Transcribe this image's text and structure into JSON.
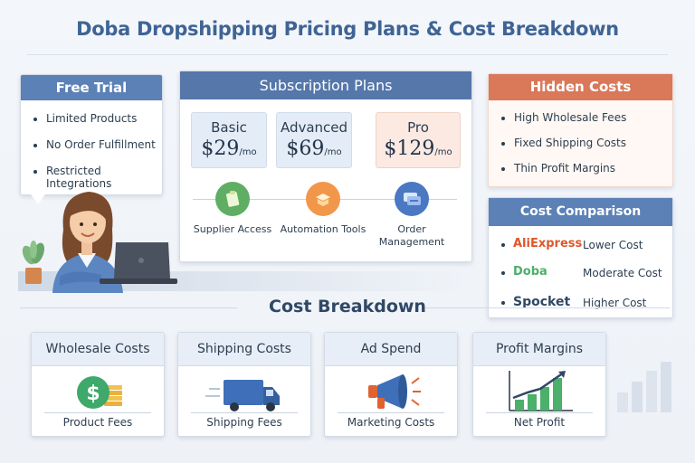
{
  "title": "Doba Dropshipping Pricing Plans & Cost Breakdown",
  "free_trial": {
    "heading": "Free Trial",
    "items": [
      "Limited Products",
      "No Order Fulfillment",
      "Restricted Integrations"
    ]
  },
  "subscription": {
    "heading": "Subscription Plans",
    "plans": [
      {
        "name": "Basic",
        "price": "$29",
        "period": "/mo"
      },
      {
        "name": "Advanced",
        "price": "$69",
        "period": "/mo"
      },
      {
        "name": "Pro",
        "price": "$129",
        "period": "/mo"
      }
    ],
    "features": [
      {
        "label": "Supplier Access",
        "icon": "supplier-access-icon"
      },
      {
        "label": "Automation Tools",
        "icon": "automation-tools-icon"
      },
      {
        "label": "Order Management",
        "icon": "order-management-icon"
      }
    ]
  },
  "hidden_costs": {
    "heading": "Hidden Costs",
    "items": [
      "High Wholesale Fees",
      "Fixed Shipping Costs",
      "Thin Profit Margins"
    ]
  },
  "comparison": {
    "heading": "Cost Comparison",
    "rows": [
      {
        "brand": "AliExpress",
        "level": "Lower Cost",
        "color": "#e0562a"
      },
      {
        "brand": "Doba",
        "level": "Moderate Cost",
        "color": "#4caf6a"
      },
      {
        "brand": "Spocket",
        "level": "Higher Cost",
        "color": "#2f4866"
      }
    ]
  },
  "breakdown": {
    "heading": "Cost Breakdown",
    "cards": [
      {
        "title": "Wholesale Costs",
        "caption": "Product Fees",
        "icon": "dollar-coin-icon"
      },
      {
        "title": "Shipping Costs",
        "caption": "Shipping Fees",
        "icon": "truck-icon"
      },
      {
        "title": "Ad Spend",
        "caption": "Marketing Costs",
        "icon": "megaphone-icon"
      },
      {
        "title": "Profit Margins",
        "caption": "Net Profit",
        "icon": "growth-chart-icon"
      }
    ]
  },
  "colors": {
    "title": "#3f6494",
    "blue_band": "#5b81b6",
    "orange_band": "#d9795a"
  }
}
